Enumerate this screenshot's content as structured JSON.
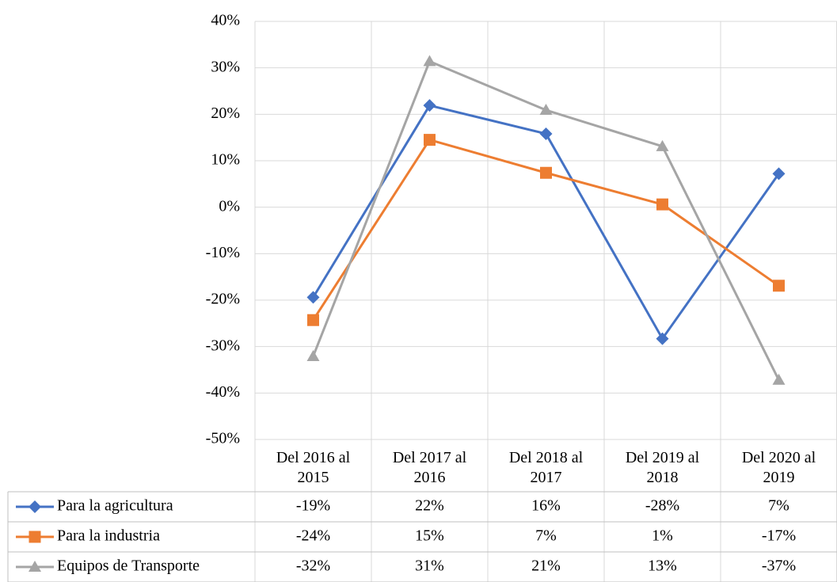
{
  "chart_data": {
    "type": "line",
    "categories": [
      "Del 2016 al 2015",
      "Del 2017 al 2016",
      "Del 2018 al 2017",
      "Del 2019 al 2018",
      "Del 2020 al 2019"
    ],
    "series": [
      {
        "name": "Para la agricultura",
        "color": "#4472c4",
        "marker": "diamond",
        "values": [
          -19.4,
          21.9,
          15.8,
          -28.3,
          7.2
        ],
        "value_labels": [
          "-19%",
          "22%",
          "16%",
          "-28%",
          "7%"
        ]
      },
      {
        "name": "Para la industria",
        "color": "#ed7d31",
        "marker": "square",
        "values": [
          -24.3,
          14.5,
          7.4,
          0.6,
          -16.9
        ],
        "value_labels": [
          "-24%",
          "15%",
          "7%",
          "1%",
          "-17%"
        ]
      },
      {
        "name": "Equipos de Transporte",
        "color": "#a5a5a5",
        "marker": "triangle",
        "values": [
          -32.1,
          31.4,
          20.9,
          13.1,
          -37.2
        ],
        "value_labels": [
          "-32%",
          "31%",
          "21%",
          "13%",
          "-37%"
        ]
      }
    ],
    "ylim": [
      -50,
      40
    ],
    "yticks": [
      {
        "value": -50,
        "label": "-50%"
      },
      {
        "value": -40,
        "label": "-40%"
      },
      {
        "value": -30,
        "label": "-30%"
      },
      {
        "value": -20,
        "label": "-20%"
      },
      {
        "value": -10,
        "label": "-10%"
      },
      {
        "value": 0,
        "label": "0%"
      },
      {
        "value": 10,
        "label": "10%"
      },
      {
        "value": 20,
        "label": "20%"
      },
      {
        "value": 30,
        "label": "30%"
      },
      {
        "value": 40,
        "label": "40%"
      }
    ],
    "grid": true,
    "data_table": true
  }
}
